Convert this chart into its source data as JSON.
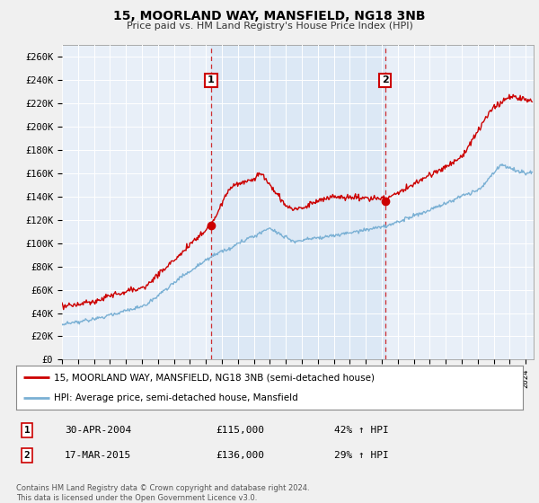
{
  "title": "15, MOORLAND WAY, MANSFIELD, NG18 3NB",
  "subtitle": "Price paid vs. HM Land Registry's House Price Index (HPI)",
  "ylabel_ticks": [
    "£0",
    "£20K",
    "£40K",
    "£60K",
    "£80K",
    "£100K",
    "£120K",
    "£140K",
    "£160K",
    "£180K",
    "£200K",
    "£220K",
    "£240K",
    "£260K"
  ],
  "ytick_values": [
    0,
    20000,
    40000,
    60000,
    80000,
    100000,
    120000,
    140000,
    160000,
    180000,
    200000,
    220000,
    240000,
    260000
  ],
  "ylim": [
    0,
    270000
  ],
  "xlim_start": 1995.0,
  "xlim_end": 2024.5,
  "sale1_x": 2004.33,
  "sale1_y": 115000,
  "sale1_label": "1",
  "sale1_date": "30-APR-2004",
  "sale1_price": "£115,000",
  "sale1_hpi": "42% ↑ HPI",
  "sale2_x": 2015.21,
  "sale2_y": 136000,
  "sale2_label": "2",
  "sale2_date": "17-MAR-2015",
  "sale2_price": "£136,000",
  "sale2_hpi": "29% ↑ HPI",
  "line1_color": "#cc0000",
  "line2_color": "#7ab0d4",
  "vline_color": "#cc0000",
  "marker_box_color": "#cc0000",
  "shade_color": "#c8dcf0",
  "legend_line1": "15, MOORLAND WAY, MANSFIELD, NG18 3NB (semi-detached house)",
  "legend_line2": "HPI: Average price, semi-detached house, Mansfield",
  "footnote": "Contains HM Land Registry data © Crown copyright and database right 2024.\nThis data is licensed under the Open Government Licence v3.0.",
  "background_color": "#f0f0f0",
  "plot_bg_color": "#e8eff8"
}
